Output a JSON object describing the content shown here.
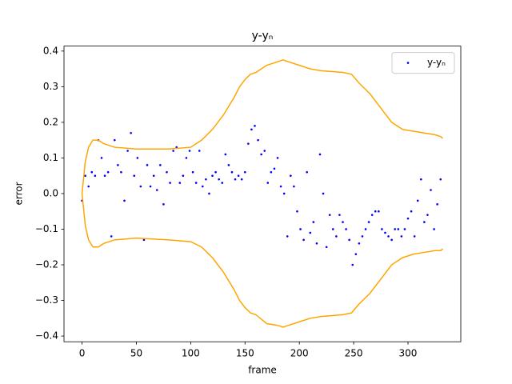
{
  "chart_data": {
    "type": "scatter",
    "title": "y-yₙ",
    "x_label": "frame",
    "y_label": "error",
    "xlim": [
      -16.6,
      348.6
    ],
    "ylim": [
      -0.416,
      0.414
    ],
    "xticks": [
      0,
      50,
      100,
      150,
      200,
      250,
      300
    ],
    "yticks": [
      {
        "value": -0.4,
        "label": "−0.4"
      },
      {
        "value": -0.3,
        "label": "−0.3"
      },
      {
        "value": -0.2,
        "label": "−0.2"
      },
      {
        "value": -0.1,
        "label": "−0.1"
      },
      {
        "value": 0,
        "label": "0.0"
      },
      0.1,
      0.2,
      0.3,
      0.4
    ],
    "legend": "upper right",
    "series": [
      {
        "name": "y-yₙ",
        "type": "scatter",
        "color": "#0000ff",
        "x": [
          0,
          3,
          6,
          9,
          12,
          15,
          18,
          21,
          24,
          27,
          30,
          33,
          36,
          39,
          42,
          45,
          48,
          51,
          54,
          57,
          60,
          63,
          66,
          69,
          72,
          75,
          78,
          81,
          84,
          87,
          90,
          93,
          96,
          99,
          102,
          105,
          108,
          111,
          114,
          117,
          120,
          123,
          126,
          129,
          132,
          135,
          138,
          141,
          144,
          147,
          150,
          153,
          156,
          159,
          162,
          165,
          168,
          171,
          174,
          177,
          180,
          183,
          186,
          189,
          192,
          195,
          198,
          201,
          204,
          207,
          210,
          213,
          216,
          219,
          222,
          225,
          228,
          231,
          234,
          237,
          240,
          243,
          246,
          249,
          252,
          255,
          258,
          261,
          264,
          267,
          270,
          273,
          276,
          279,
          282,
          285,
          288,
          291,
          294,
          297,
          300,
          303,
          306,
          309,
          312,
          315,
          318,
          321,
          324,
          327,
          330
        ],
        "values": [
          -0.02,
          0.05,
          0.02,
          0.06,
          0.05,
          0.15,
          0.1,
          0.05,
          0.06,
          -0.12,
          0.15,
          0.08,
          0.06,
          -0.02,
          0.12,
          0.17,
          0.05,
          0.1,
          0.02,
          -0.13,
          0.08,
          0.02,
          0.05,
          0.01,
          0.08,
          -0.03,
          0.06,
          0.03,
          0.12,
          0.13,
          0.03,
          0.05,
          0.1,
          0.12,
          0.06,
          0.03,
          0.12,
          0.02,
          0.04,
          0.0,
          0.05,
          0.06,
          0.04,
          0.03,
          0.11,
          0.08,
          0.06,
          0.04,
          0.05,
          0.04,
          0.06,
          0.14,
          0.18,
          0.19,
          0.15,
          0.11,
          0.12,
          0.03,
          0.06,
          0.07,
          0.1,
          0.02,
          0.0,
          -0.12,
          0.05,
          0.02,
          -0.05,
          -0.1,
          -0.13,
          0.06,
          -0.11,
          -0.08,
          -0.14,
          0.11,
          0.0,
          -0.15,
          -0.06,
          -0.1,
          -0.12,
          -0.06,
          -0.08,
          -0.1,
          -0.13,
          -0.2,
          -0.17,
          -0.14,
          -0.12,
          -0.1,
          -0.08,
          -0.06,
          -0.05,
          -0.05,
          -0.1,
          -0.11,
          -0.12,
          -0.13,
          -0.1,
          -0.1,
          -0.12,
          -0.1,
          -0.07,
          -0.05,
          -0.12,
          -0.02,
          0.04,
          -0.08,
          -0.06,
          0.01,
          -0.1,
          -0.03,
          0.04
        ]
      },
      {
        "type": "line",
        "color": "#ffa500",
        "x": [
          0,
          3,
          6,
          10,
          15,
          20,
          30,
          50,
          80,
          100,
          110,
          120,
          130,
          140,
          145,
          150,
          155,
          160,
          170,
          180,
          185,
          190,
          200,
          210,
          220,
          240,
          248,
          255,
          265,
          275,
          285,
          295,
          305,
          315,
          325,
          330,
          332
        ],
        "values": [
          0.0,
          0.09,
          0.13,
          0.15,
          0.15,
          0.14,
          0.13,
          0.125,
          0.125,
          0.13,
          0.15,
          0.18,
          0.22,
          0.27,
          0.3,
          0.32,
          0.335,
          0.34,
          0.36,
          0.37,
          0.375,
          0.37,
          0.36,
          0.35,
          0.345,
          0.34,
          0.335,
          0.31,
          0.28,
          0.24,
          0.2,
          0.18,
          0.175,
          0.17,
          0.165,
          0.16,
          0.155
        ]
      },
      {
        "type": "line",
        "color": "#ffa500",
        "x": [
          0,
          3,
          6,
          10,
          15,
          20,
          30,
          50,
          80,
          100,
          110,
          120,
          130,
          140,
          145,
          150,
          155,
          160,
          170,
          180,
          185,
          190,
          200,
          210,
          220,
          240,
          248,
          255,
          265,
          275,
          285,
          295,
          305,
          315,
          325,
          330,
          332
        ],
        "values": [
          0.0,
          -0.09,
          -0.13,
          -0.15,
          -0.15,
          -0.14,
          -0.13,
          -0.125,
          -0.13,
          -0.135,
          -0.15,
          -0.18,
          -0.22,
          -0.27,
          -0.3,
          -0.32,
          -0.335,
          -0.34,
          -0.365,
          -0.37,
          -0.375,
          -0.37,
          -0.36,
          -0.35,
          -0.345,
          -0.34,
          -0.335,
          -0.31,
          -0.28,
          -0.24,
          -0.2,
          -0.18,
          -0.17,
          -0.165,
          -0.16,
          -0.16,
          -0.155
        ]
      }
    ]
  }
}
